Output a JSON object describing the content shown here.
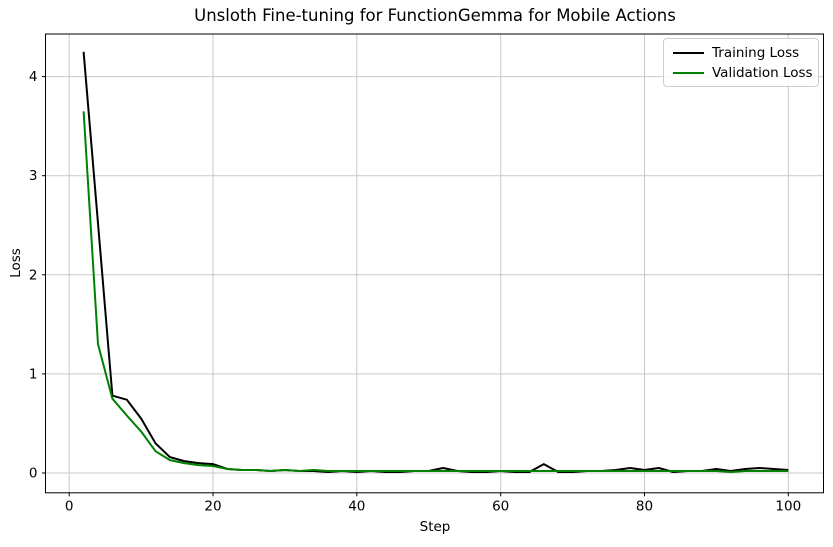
{
  "chart_data": {
    "type": "line",
    "title": "Unsloth Fine-tuning for FunctionGemma for Mobile Actions",
    "xlabel": "Step",
    "ylabel": "Loss",
    "xlim": [
      -3.3,
      104.9
    ],
    "ylim": [
      -0.2,
      4.43
    ],
    "xticks": [
      0,
      20,
      40,
      60,
      80,
      100
    ],
    "yticks": [
      0,
      1,
      2,
      3,
      4
    ],
    "grid": true,
    "legend_position": "upper right",
    "x": [
      2,
      4,
      6,
      8,
      10,
      12,
      14,
      16,
      18,
      20,
      22,
      24,
      26,
      28,
      30,
      32,
      34,
      36,
      38,
      40,
      42,
      44,
      46,
      48,
      50,
      52,
      54,
      56,
      58,
      60,
      62,
      64,
      66,
      68,
      70,
      72,
      74,
      76,
      78,
      80,
      82,
      84,
      86,
      88,
      90,
      92,
      94,
      96,
      98,
      100
    ],
    "series": [
      {
        "name": "Training Loss",
        "color": "#000000",
        "values": [
          4.25,
          2.52,
          0.78,
          0.74,
          0.55,
          0.3,
          0.16,
          0.12,
          0.1,
          0.09,
          0.04,
          0.03,
          0.03,
          0.02,
          0.03,
          0.02,
          0.02,
          0.01,
          0.02,
          0.01,
          0.02,
          0.01,
          0.01,
          0.02,
          0.02,
          0.05,
          0.02,
          0.01,
          0.01,
          0.02,
          0.01,
          0.01,
          0.09,
          0.01,
          0.01,
          0.02,
          0.02,
          0.03,
          0.05,
          0.03,
          0.05,
          0.01,
          0.02,
          0.02,
          0.04,
          0.02,
          0.04,
          0.05,
          0.04,
          0.03
        ]
      },
      {
        "name": "Validation Loss",
        "color": "#008000",
        "values": [
          3.65,
          1.3,
          0.75,
          0.58,
          0.42,
          0.22,
          0.13,
          0.1,
          0.08,
          0.07,
          0.04,
          0.03,
          0.03,
          0.02,
          0.03,
          0.02,
          0.03,
          0.02,
          0.02,
          0.02,
          0.02,
          0.02,
          0.02,
          0.02,
          0.02,
          0.02,
          0.02,
          0.02,
          0.02,
          0.02,
          0.02,
          0.02,
          0.02,
          0.02,
          0.02,
          0.02,
          0.02,
          0.02,
          0.02,
          0.02,
          0.02,
          0.02,
          0.02,
          0.02,
          0.02,
          0.01,
          0.02,
          0.02,
          0.02,
          0.02
        ]
      }
    ]
  },
  "colors": {
    "background": "#ffffff",
    "spine": "#000000",
    "grid": "#c9c9c9",
    "tick_label": "#000000",
    "legend_border": "#cccccc"
  }
}
